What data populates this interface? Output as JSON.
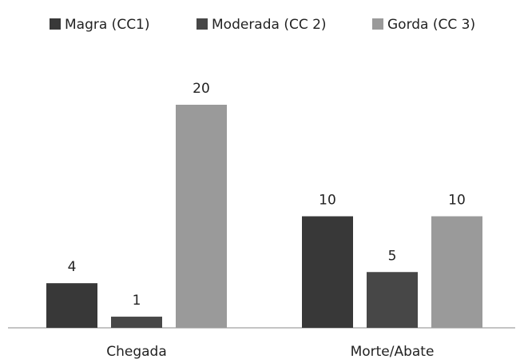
{
  "chart_data": {
    "type": "bar",
    "categories": [
      "Chegada",
      "Morte/Abate"
    ],
    "series": [
      {
        "name": "Magra (CC1)",
        "color": "#383838",
        "values": [
          4,
          10
        ]
      },
      {
        "name": "Moderada (CC 2)",
        "color": "#474747",
        "values": [
          1,
          5
        ]
      },
      {
        "name": "Gorda (CC 3)",
        "color": "#9a9a9a",
        "values": [
          20,
          10
        ]
      }
    ],
    "legend": "top"
  }
}
